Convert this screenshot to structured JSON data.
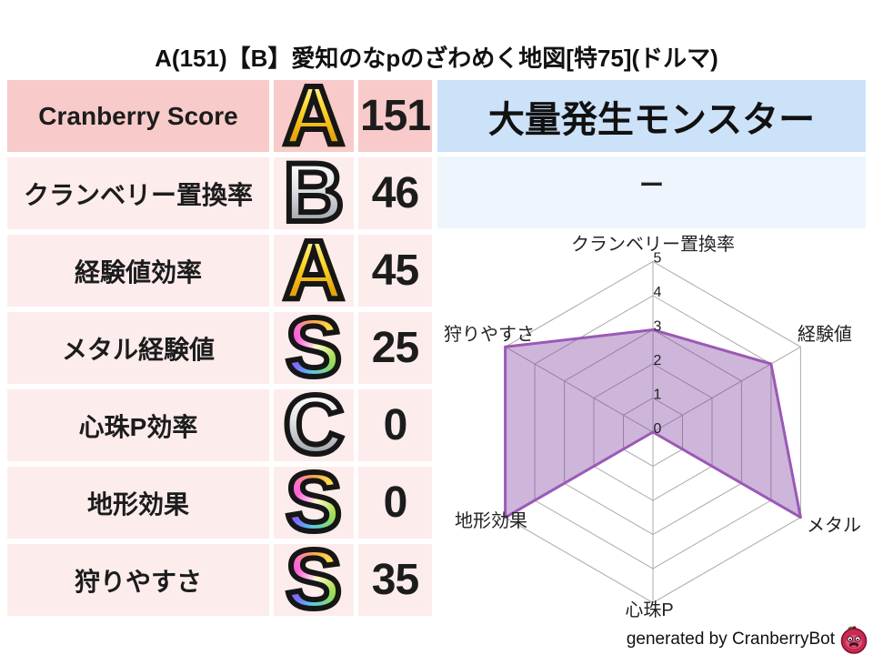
{
  "title": "A(151)【B】愛知のなpのざわめく地図[特75](ドルマ)",
  "colors": {
    "row_strong": "#f8caca",
    "row_soft": "#fdecec",
    "panel_header": "#cce2f8",
    "panel_body": "#eef5fc"
  },
  "score_table": {
    "rows": [
      {
        "label": "Cranberry Score",
        "grade": "A",
        "badge_style": "gold",
        "value": "151",
        "primary": true
      },
      {
        "label": "クランベリー置換率",
        "grade": "B",
        "badge_style": "silver",
        "value": "46",
        "primary": false
      },
      {
        "label": "経験値効率",
        "grade": "A",
        "badge_style": "gold",
        "value": "45",
        "primary": false
      },
      {
        "label": "メタル経験値",
        "grade": "S",
        "badge_style": "rainbow",
        "value": "25",
        "primary": false
      },
      {
        "label": "心珠P効率",
        "grade": "C",
        "badge_style": "silver",
        "value": "0",
        "primary": false
      },
      {
        "label": "地形効果",
        "grade": "S",
        "badge_style": "rainbow",
        "value": "0",
        "primary": false
      },
      {
        "label": "狩りやすさ",
        "grade": "S",
        "badge_style": "rainbow",
        "value": "35",
        "primary": false
      }
    ]
  },
  "monster_panel": {
    "header": "大量発生モンスター",
    "value": "ー"
  },
  "chart_data": {
    "type": "radar",
    "categories": [
      "クランベリー置換率",
      "経験値",
      "メタル",
      "心珠P",
      "地形効果",
      "狩りやすさ"
    ],
    "values": [
      3,
      4,
      5,
      0,
      5,
      5
    ],
    "ticks": [
      0,
      1,
      2,
      3,
      4,
      5
    ],
    "rmin": 0,
    "rmax": 5,
    "grid": "on",
    "grid_color": "#a9a9a9",
    "fill": "rgba(125,60,158,0.38)",
    "stroke": "#9b59b6"
  },
  "footer": {
    "credit": "generated by CranberryBot",
    "logo": "cranberrybot-logo-icon"
  }
}
